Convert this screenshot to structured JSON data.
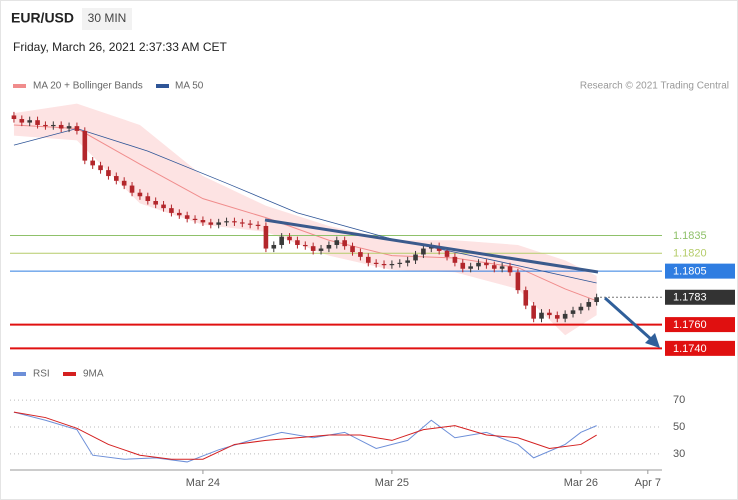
{
  "chart_data": {
    "type": "candlestick",
    "title": "EUR/USD",
    "interval": "30 MIN",
    "subtitle": "Friday, March 26, 2021 2:37:33 AM CET",
    "credit": "Research © 2021 Trading Central",
    "up_color": "#3a3a3a",
    "down_color": "#b3262b",
    "xlim": [
      -0.5,
      82.3
    ],
    "xticks": [
      {
        "value": 24,
        "label": "Mar 24"
      },
      {
        "value": 48,
        "label": "Mar 25"
      },
      {
        "value": 72,
        "label": "Mar 26"
      },
      {
        "value": 80.5,
        "label": "Apr 7"
      }
    ],
    "ylim": [
      1.1726,
      1.1949
    ],
    "candles": [
      [
        1.1936,
        1.1939,
        1.193,
        1.1933
      ],
      [
        1.1933,
        1.1936,
        1.1927,
        1.193
      ],
      [
        1.193,
        1.1935,
        1.1927,
        1.1932
      ],
      [
        1.1932,
        1.1935,
        1.1925,
        1.1928
      ],
      [
        1.1928,
        1.1931,
        1.1924,
        1.1927
      ],
      [
        1.1927,
        1.1931,
        1.1924,
        1.1928
      ],
      [
        1.1928,
        1.1931,
        1.1922,
        1.1925
      ],
      [
        1.1925,
        1.193,
        1.1922,
        1.1927
      ],
      [
        1.1927,
        1.193,
        1.192,
        1.1923
      ],
      [
        1.1923,
        1.1926,
        1.1895,
        1.1898
      ],
      [
        1.1898,
        1.1901,
        1.1891,
        1.1894
      ],
      [
        1.1894,
        1.1897,
        1.1887,
        1.189
      ],
      [
        1.189,
        1.1893,
        1.1882,
        1.1885
      ],
      [
        1.1885,
        1.1888,
        1.1878,
        1.1881
      ],
      [
        1.1881,
        1.1884,
        1.1874,
        1.1877
      ],
      [
        1.1877,
        1.188,
        1.1868,
        1.1871
      ],
      [
        1.1871,
        1.1874,
        1.1865,
        1.1868
      ],
      [
        1.1868,
        1.1871,
        1.1861,
        1.1864
      ],
      [
        1.1864,
        1.1867,
        1.1858,
        1.1861
      ],
      [
        1.1861,
        1.1864,
        1.1855,
        1.1858
      ],
      [
        1.1858,
        1.1861,
        1.1851,
        1.1854
      ],
      [
        1.1854,
        1.1857,
        1.1849,
        1.1852
      ],
      [
        1.1852,
        1.1855,
        1.1846,
        1.1849
      ],
      [
        1.1849,
        1.1852,
        1.1845,
        1.1848
      ],
      [
        1.1848,
        1.1851,
        1.1843,
        1.1846
      ],
      [
        1.1846,
        1.1849,
        1.1841,
        1.1844
      ],
      [
        1.1844,
        1.1849,
        1.1841,
        1.1846
      ],
      [
        1.1846,
        1.185,
        1.1843,
        1.1847
      ],
      [
        1.1847,
        1.185,
        1.1843,
        1.1846
      ],
      [
        1.1846,
        1.1849,
        1.1842,
        1.1845
      ],
      [
        1.1845,
        1.1848,
        1.1841,
        1.1844
      ],
      [
        1.1844,
        1.1847,
        1.184,
        1.1843
      ],
      [
        1.1843,
        1.1846,
        1.1821,
        1.1824
      ],
      [
        1.1824,
        1.183,
        1.1821,
        1.1827
      ],
      [
        1.1827,
        1.1837,
        1.1824,
        1.1834
      ],
      [
        1.1834,
        1.1837,
        1.1828,
        1.1831
      ],
      [
        1.1831,
        1.1834,
        1.1824,
        1.1827
      ],
      [
        1.1827,
        1.183,
        1.1823,
        1.1826
      ],
      [
        1.1826,
        1.1829,
        1.1819,
        1.1822
      ],
      [
        1.1822,
        1.1827,
        1.1819,
        1.1824
      ],
      [
        1.1824,
        1.183,
        1.1821,
        1.1827
      ],
      [
        1.1827,
        1.1834,
        1.1824,
        1.1831
      ],
      [
        1.1831,
        1.1834,
        1.1823,
        1.1826
      ],
      [
        1.1826,
        1.1829,
        1.1818,
        1.1821
      ],
      [
        1.1821,
        1.1824,
        1.1814,
        1.1817
      ],
      [
        1.1817,
        1.182,
        1.1809,
        1.1812
      ],
      [
        1.1812,
        1.1815,
        1.1808,
        1.1811
      ],
      [
        1.1811,
        1.1814,
        1.1807,
        1.181
      ],
      [
        1.181,
        1.1814,
        1.1807,
        1.1811
      ],
      [
        1.1811,
        1.1815,
        1.1808,
        1.1812
      ],
      [
        1.1812,
        1.1817,
        1.1809,
        1.1814
      ],
      [
        1.1814,
        1.1822,
        1.1811,
        1.1819
      ],
      [
        1.1819,
        1.1827,
        1.1816,
        1.1824
      ],
      [
        1.1824,
        1.1829,
        1.1821,
        1.1826
      ],
      [
        1.1826,
        1.1829,
        1.1819,
        1.1822
      ],
      [
        1.1822,
        1.1825,
        1.1814,
        1.1817
      ],
      [
        1.1817,
        1.182,
        1.1809,
        1.1812
      ],
      [
        1.1812,
        1.1815,
        1.1804,
        1.1807
      ],
      [
        1.1807,
        1.1812,
        1.1804,
        1.1809
      ],
      [
        1.1809,
        1.1815,
        1.1806,
        1.1812
      ],
      [
        1.1812,
        1.1815,
        1.1807,
        1.181
      ],
      [
        1.181,
        1.1813,
        1.1804,
        1.1807
      ],
      [
        1.1807,
        1.1812,
        1.1804,
        1.1809
      ],
      [
        1.1809,
        1.1812,
        1.1801,
        1.1804
      ],
      [
        1.1804,
        1.1807,
        1.1786,
        1.1789
      ],
      [
        1.1789,
        1.1792,
        1.1773,
        1.1776
      ],
      [
        1.1776,
        1.1779,
        1.1762,
        1.1765
      ],
      [
        1.1765,
        1.1773,
        1.1762,
        1.177
      ],
      [
        1.177,
        1.1773,
        1.1765,
        1.1768
      ],
      [
        1.1768,
        1.1771,
        1.1762,
        1.1765
      ],
      [
        1.1765,
        1.1772,
        1.1762,
        1.1769
      ],
      [
        1.1769,
        1.1775,
        1.1766,
        1.1772
      ],
      [
        1.1772,
        1.1778,
        1.1769,
        1.1775
      ],
      [
        1.1775,
        1.1782,
        1.1772,
        1.1779
      ],
      [
        1.1779,
        1.1786,
        1.1776,
        1.1783
      ]
    ],
    "bollinger": {
      "name": "MA 20 + Bollinger Bands",
      "color": "#f08c8c",
      "fill": "#fde3e3",
      "x": [
        0,
        8,
        16,
        24,
        32,
        40,
        48,
        56,
        64,
        70,
        74
      ],
      "upper": [
        1.1938,
        1.1946,
        1.1928,
        1.1885,
        1.186,
        1.1843,
        1.1831,
        1.1831,
        1.1827,
        1.1814,
        1.1801
      ],
      "middle": [
        1.1928,
        1.1925,
        1.1895,
        1.1866,
        1.185,
        1.1831,
        1.1818,
        1.1816,
        1.1808,
        1.179,
        1.178
      ],
      "lower": [
        1.1919,
        1.1915,
        1.1862,
        1.1844,
        1.1838,
        1.1818,
        1.1806,
        1.1804,
        1.179,
        1.1751,
        1.1768
      ]
    },
    "ma50": {
      "name": "MA 50",
      "color": "#2f5597",
      "x": [
        0,
        8,
        17,
        27,
        36,
        48,
        61,
        74
      ],
      "values": [
        1.1911,
        1.1925,
        1.1906,
        1.1879,
        1.1854,
        1.1832,
        1.1814,
        1.1795
      ]
    },
    "levels": [
      {
        "value": 1.1835,
        "label": "1.1835",
        "color": "#8fc16a",
        "style": "text"
      },
      {
        "value": 1.182,
        "label": "1.1820",
        "color": "#b5cc6a",
        "style": "text"
      },
      {
        "value": 1.1805,
        "label": "1.1805",
        "color": "#2f7de1",
        "style": "box"
      },
      {
        "value": 1.1783,
        "label": "1.1783",
        "color": "#333333",
        "style": "current"
      },
      {
        "value": 1.176,
        "label": "1.1760",
        "color": "#e01010",
        "style": "box"
      },
      {
        "value": 1.174,
        "label": "1.1740",
        "color": "#e01010",
        "style": "box"
      }
    ],
    "rsi": {
      "ylim": [
        18,
        76
      ],
      "yticks": [
        30,
        50,
        70
      ],
      "series": [
        {
          "name": "RSI",
          "color": "#6d8fd8",
          "x": [
            0,
            4,
            8,
            10,
            14,
            18,
            22,
            26,
            30,
            34,
            38,
            42,
            46,
            50,
            53,
            56,
            60,
            64,
            66,
            70,
            72,
            74
          ],
          "values": [
            61,
            55,
            48,
            29,
            26,
            27,
            24,
            33,
            40,
            46,
            42,
            46,
            34,
            40,
            55,
            42,
            46,
            37,
            27,
            37,
            46,
            51
          ]
        },
        {
          "name": "9MA",
          "color": "#d42020",
          "x": [
            0,
            4,
            8,
            12,
            16,
            20,
            24,
            28,
            32,
            36,
            40,
            44,
            48,
            52,
            56,
            60,
            64,
            68,
            72,
            74
          ],
          "values": [
            61,
            57,
            49,
            37,
            29,
            26,
            26,
            37,
            40,
            42,
            44,
            44,
            40,
            48,
            51,
            44,
            42,
            34,
            37,
            44
          ]
        }
      ]
    }
  }
}
